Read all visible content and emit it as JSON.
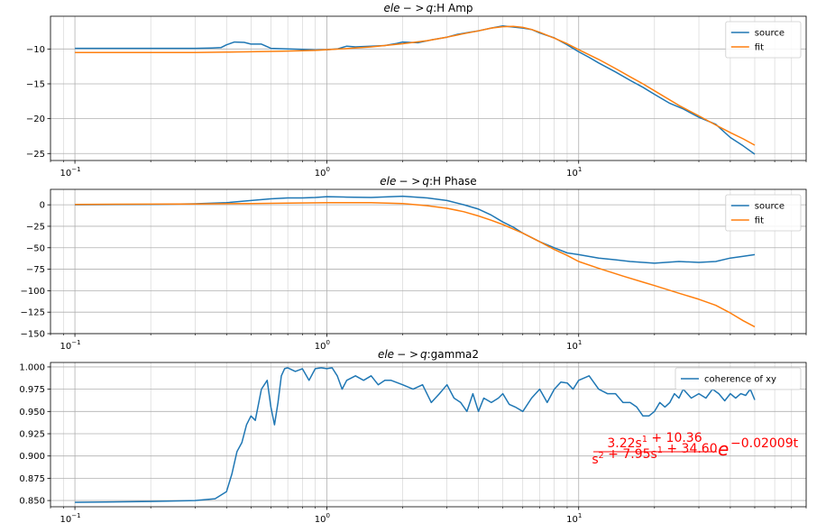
{
  "chart_data": [
    {
      "type": "line",
      "title": "ele->q:H Amp",
      "title_parts": [
        "ele",
        "− >",
        "q",
        ":H Amp"
      ],
      "xscale": "log",
      "xlim": [
        0.08,
        80
      ],
      "ylim": [
        -26,
        -5.3
      ],
      "xticks": [
        0.1,
        1,
        10
      ],
      "xtick_labels": [
        {
          "base": "10",
          "exp": "−1"
        },
        {
          "base": "10",
          "exp": "0"
        },
        {
          "base": "10",
          "exp": "1"
        }
      ],
      "yticks": [
        -25,
        -20,
        -15,
        -10
      ],
      "ytick_labels": [
        "−25",
        "−20",
        "−15",
        "−10"
      ],
      "grid": true,
      "legend": "top-right",
      "series": [
        {
          "name": "source",
          "color": "#1f77b4",
          "x": [
            0.1,
            0.2,
            0.3,
            0.35,
            0.38,
            0.4,
            0.43,
            0.47,
            0.5,
            0.55,
            0.6,
            0.7,
            0.8,
            0.9,
            1.0,
            1.1,
            1.2,
            1.3,
            1.5,
            1.7,
            1.9,
            2.0,
            2.3,
            2.6,
            3.0,
            3.3,
            3.7,
            4.0,
            4.5,
            5.0,
            5.5,
            6.0,
            6.5,
            7.0,
            8.0,
            9.0,
            10,
            11,
            12,
            14,
            16,
            18,
            20,
            23,
            26,
            30,
            35,
            40,
            45,
            50
          ],
          "y": [
            -9.9,
            -9.9,
            -9.9,
            -9.85,
            -9.8,
            -9.4,
            -9.0,
            -9.05,
            -9.3,
            -9.3,
            -9.9,
            -10.0,
            -10.05,
            -10.15,
            -10.1,
            -10.0,
            -9.6,
            -9.7,
            -9.6,
            -9.5,
            -9.2,
            -9.0,
            -9.1,
            -8.7,
            -8.3,
            -7.9,
            -7.6,
            -7.4,
            -7.0,
            -6.7,
            -6.85,
            -7.0,
            -7.2,
            -7.7,
            -8.4,
            -9.4,
            -10.4,
            -11.2,
            -12.0,
            -13.3,
            -14.5,
            -15.5,
            -16.5,
            -17.8,
            -18.6,
            -19.8,
            -20.8,
            -22.7,
            -23.9,
            -25.1
          ]
        },
        {
          "name": "fit",
          "color": "#ff7f0e",
          "x": [
            0.1,
            0.2,
            0.3,
            0.4,
            0.5,
            0.6,
            0.7,
            0.8,
            0.9,
            1.0,
            1.2,
            1.5,
            2.0,
            2.5,
            3.0,
            3.5,
            4.0,
            4.5,
            5.0,
            5.5,
            6.0,
            6.5,
            7.0,
            8.0,
            9.0,
            10,
            12,
            14,
            16,
            18,
            20,
            25,
            30,
            35,
            40,
            45,
            50
          ],
          "y": [
            -10.5,
            -10.5,
            -10.5,
            -10.45,
            -10.4,
            -10.35,
            -10.3,
            -10.25,
            -10.2,
            -10.1,
            -9.95,
            -9.7,
            -9.25,
            -8.8,
            -8.3,
            -7.8,
            -7.4,
            -7.0,
            -6.8,
            -6.75,
            -6.9,
            -7.2,
            -7.6,
            -8.45,
            -9.25,
            -10.1,
            -11.5,
            -12.8,
            -14.0,
            -15.0,
            -16.0,
            -18.1,
            -19.6,
            -20.9,
            -22.0,
            -22.9,
            -23.8
          ]
        }
      ]
    },
    {
      "type": "line",
      "title": "ele->q:H Phase",
      "title_parts": [
        "ele",
        "− >",
        "q",
        ":H Phase"
      ],
      "xscale": "log",
      "xlim": [
        0.08,
        80
      ],
      "ylim": [
        -150,
        18
      ],
      "xticks": [
        0.1,
        1,
        10
      ],
      "xtick_labels": [
        {
          "base": "10",
          "exp": "−1"
        },
        {
          "base": "10",
          "exp": "0"
        },
        {
          "base": "10",
          "exp": "1"
        }
      ],
      "yticks": [
        -150,
        -125,
        -100,
        -75,
        -50,
        -25,
        0
      ],
      "ytick_labels": [
        "−150",
        "−125",
        "−100",
        "−75",
        "−50",
        "−25",
        "0"
      ],
      "grid": true,
      "legend": "top-right",
      "series": [
        {
          "name": "source",
          "color": "#1f77b4",
          "x": [
            0.1,
            0.2,
            0.3,
            0.4,
            0.5,
            0.6,
            0.7,
            0.8,
            0.9,
            1.0,
            1.2,
            1.5,
            2.0,
            2.5,
            3.0,
            3.5,
            4.0,
            4.5,
            5.0,
            5.5,
            6.0,
            7.0,
            8.0,
            9.0,
            10,
            12,
            14,
            16,
            18,
            20,
            25,
            30,
            35,
            40,
            45,
            50
          ],
          "y": [
            0,
            0.5,
            1.2,
            2.5,
            5.0,
            7.0,
            8.0,
            8.0,
            8.5,
            9.5,
            9.0,
            8.5,
            10.0,
            8.0,
            5.0,
            0,
            -5.0,
            -12.0,
            -20.0,
            -26.0,
            -33.0,
            -43.0,
            -50.0,
            -56.0,
            -58.0,
            -62.0,
            -64.0,
            -66.0,
            -67.0,
            -68.0,
            -66.0,
            -67.0,
            -66.0,
            -62.0,
            -60.0,
            -58.0
          ]
        },
        {
          "name": "fit",
          "color": "#ff7f0e",
          "x": [
            0.1,
            0.2,
            0.3,
            0.5,
            0.7,
            1.0,
            1.5,
            2.0,
            2.5,
            3.0,
            3.5,
            4.0,
            4.5,
            5.0,
            6.0,
            7.0,
            8.0,
            9.0,
            10,
            12,
            15,
            18,
            20,
            25,
            30,
            35,
            40,
            45,
            50
          ],
          "y": [
            0.5,
            0.8,
            1.0,
            1.5,
            2.0,
            2.5,
            2.5,
            1.5,
            -1.0,
            -4.0,
            -8.0,
            -13.0,
            -18.0,
            -23.0,
            -33.0,
            -43.0,
            -52.0,
            -59.0,
            -66.0,
            -74.0,
            -83.0,
            -90.0,
            -94.0,
            -103.0,
            -110.0,
            -117.0,
            -126.0,
            -135.0,
            -142.0
          ]
        }
      ]
    },
    {
      "type": "line",
      "title": "ele->q:gamma2",
      "title_parts": [
        "ele",
        "− >",
        "q",
        ":gamma2"
      ],
      "xscale": "log",
      "xlim": [
        0.08,
        80
      ],
      "ylim": [
        0.843,
        1.005
      ],
      "xticks": [
        0.1,
        1,
        10
      ],
      "xtick_labels": [
        {
          "base": "10",
          "exp": "−1"
        },
        {
          "base": "10",
          "exp": "0"
        },
        {
          "base": "10",
          "exp": "1"
        }
      ],
      "yticks": [
        0.85,
        0.875,
        0.9,
        0.925,
        0.95,
        0.975,
        1.0
      ],
      "ytick_labels": [
        "0.850",
        "0.875",
        "0.900",
        "0.925",
        "0.950",
        "0.975",
        "1.000"
      ],
      "grid": true,
      "legend": "top-right",
      "series": [
        {
          "name": "coherence of xy",
          "color": "#1f77b4",
          "x": [
            0.1,
            0.2,
            0.3,
            0.36,
            0.4,
            0.42,
            0.44,
            0.46,
            0.48,
            0.5,
            0.52,
            0.55,
            0.58,
            0.6,
            0.62,
            0.64,
            0.66,
            0.68,
            0.7,
            0.75,
            0.8,
            0.85,
            0.9,
            0.95,
            1.0,
            1.05,
            1.1,
            1.15,
            1.2,
            1.3,
            1.4,
            1.5,
            1.6,
            1.7,
            1.8,
            2.0,
            2.2,
            2.4,
            2.6,
            2.8,
            3.0,
            3.2,
            3.4,
            3.6,
            3.8,
            4.0,
            4.2,
            4.5,
            4.8,
            5.0,
            5.3,
            5.6,
            6.0,
            6.5,
            7.0,
            7.5,
            8.0,
            8.5,
            9.0,
            9.5,
            10,
            11,
            12,
            13,
            14,
            15,
            16,
            17,
            18,
            19,
            20,
            21,
            22,
            23,
            24,
            25,
            26,
            27,
            28,
            30,
            32,
            34,
            36,
            38,
            40,
            42,
            44,
            46,
            48,
            50
          ],
          "y": [
            0.848,
            0.849,
            0.85,
            0.852,
            0.86,
            0.88,
            0.905,
            0.915,
            0.935,
            0.945,
            0.94,
            0.975,
            0.985,
            0.955,
            0.935,
            0.96,
            0.99,
            0.998,
            0.999,
            0.995,
            0.998,
            0.985,
            0.998,
            0.999,
            0.998,
            0.999,
            0.99,
            0.975,
            0.985,
            0.99,
            0.985,
            0.99,
            0.98,
            0.985,
            0.985,
            0.98,
            0.975,
            0.98,
            0.96,
            0.97,
            0.98,
            0.965,
            0.96,
            0.95,
            0.97,
            0.95,
            0.965,
            0.96,
            0.965,
            0.97,
            0.958,
            0.955,
            0.95,
            0.965,
            0.975,
            0.96,
            0.975,
            0.983,
            0.982,
            0.975,
            0.985,
            0.99,
            0.975,
            0.97,
            0.97,
            0.96,
            0.96,
            0.955,
            0.945,
            0.945,
            0.95,
            0.96,
            0.955,
            0.96,
            0.97,
            0.965,
            0.975,
            0.97,
            0.965,
            0.97,
            0.965,
            0.975,
            0.97,
            0.962,
            0.97,
            0.965,
            0.97,
            0.968,
            0.975,
            0.963
          ]
        }
      ],
      "annotation": {
        "numerator": "3.22s^1 + 10.36",
        "denominator": "s^2 + 7.95s^1 + 34.60",
        "exponent": "−0.02009t",
        "color": "#ff0000"
      }
    }
  ]
}
